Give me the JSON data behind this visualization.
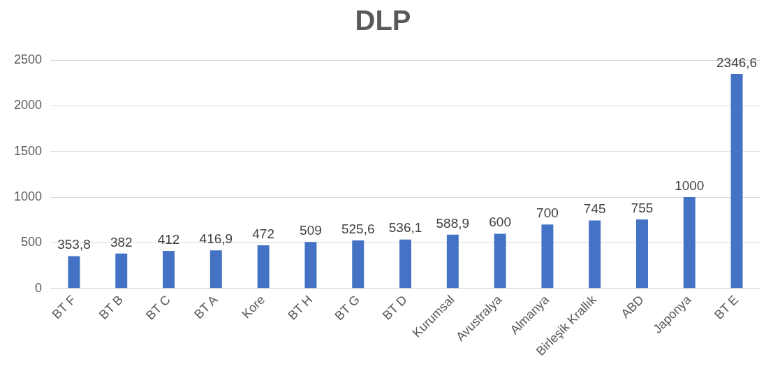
{
  "chart_data": {
    "type": "bar",
    "title": "DLP",
    "categories": [
      "BT F",
      "BT B",
      "BT C",
      "BT A",
      "Kore",
      "BT H",
      "BT G",
      "BT D",
      "Kurumsal",
      "Avustralya",
      "Almanya",
      "Birleşik Krallık",
      "ABD",
      "Japonya",
      "BT E"
    ],
    "values": [
      353.8,
      382,
      412,
      416.9,
      472,
      509,
      525.6,
      536.1,
      588.9,
      600,
      700,
      745,
      755,
      1000,
      2346.6
    ],
    "value_labels": [
      "353,8",
      "382",
      "412",
      "416,9",
      "472",
      "509",
      "525,6",
      "536,1",
      "588,9",
      "600",
      "700",
      "745",
      "755",
      "1000",
      "2346,6"
    ],
    "color": "#4472c4",
    "ylim": [
      0,
      2500
    ],
    "yticks": [
      0,
      500,
      1000,
      1500,
      2000,
      2500
    ],
    "grid": "y",
    "legend": false
  }
}
